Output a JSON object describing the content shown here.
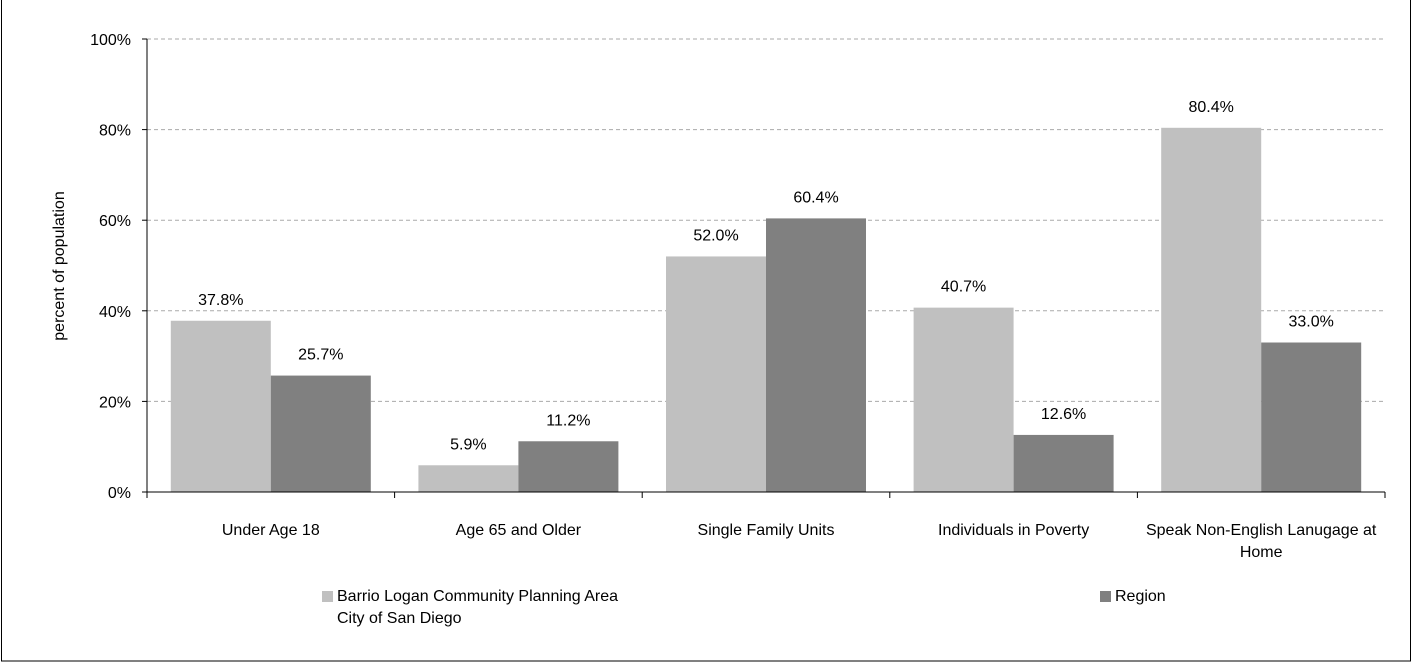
{
  "chart_data": {
    "type": "bar",
    "y_label": "percent of population",
    "categories": [
      "Under Age 18",
      "Age 65 and Older",
      "Single Family Units",
      "Individuals in Poverty",
      "Speak Non-English Lanugage at Home"
    ],
    "series": [
      {
        "name": "Barrio Logan Community Planning Area\nCity of San Diego",
        "color": "#c0c0c0",
        "values": [
          37.8,
          5.9,
          52.0,
          40.7,
          80.4
        ],
        "value_labels": [
          "37.8%",
          "5.9%",
          "52.0%",
          "40.7%",
          "80.4%"
        ]
      },
      {
        "name": "Region",
        "color": "#808080",
        "values": [
          25.7,
          11.2,
          60.4,
          12.6,
          33.0
        ],
        "value_labels": [
          "25.7%",
          "11.2%",
          "60.4%",
          "12.6%",
          "33.0%"
        ]
      }
    ],
    "ylim": [
      0,
      100
    ],
    "yticks": [
      {
        "value": 0,
        "label": "0%"
      },
      {
        "value": 20,
        "label": "20%"
      },
      {
        "value": 40,
        "label": "40%"
      },
      {
        "value": 60,
        "label": "60%"
      },
      {
        "value": 80,
        "label": "80%"
      },
      {
        "value": 100,
        "label": "100%"
      }
    ],
    "grid": true
  }
}
